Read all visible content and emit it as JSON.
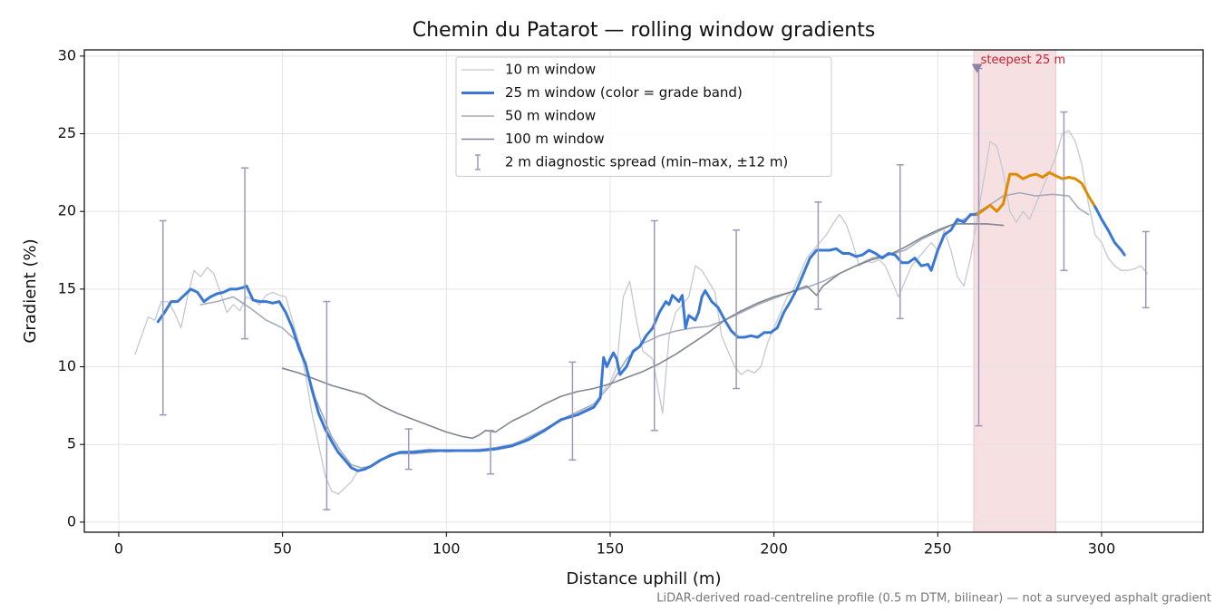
{
  "chart_data": {
    "type": "line",
    "title": "Chemin du Patarot — rolling window gradients",
    "x_label": "Distance uphill (m)",
    "y_label": "Gradient (%)",
    "footnote": "LiDAR-derived road-centreline profile (0.5 m DTM, bilinear) — not a surveyed asphalt gradient",
    "xlim": [
      -10.5,
      331
    ],
    "ylim": [
      -0.65,
      30.4
    ],
    "xticks": [
      0,
      50,
      100,
      150,
      200,
      250,
      300
    ],
    "yticks": [
      0,
      5,
      10,
      15,
      20,
      25,
      30
    ],
    "grid": true,
    "legend": "upper center",
    "series": [
      {
        "name": "10 m window",
        "color": "#c3c8d1",
        "width": 1.3,
        "x": [
          5,
          7,
          9,
          11,
          13,
          15,
          17,
          19,
          21,
          23,
          25,
          27,
          29,
          31,
          33,
          35,
          37,
          39,
          41,
          43,
          45,
          47,
          49,
          51,
          53,
          55,
          57,
          59,
          61,
          63,
          65,
          67,
          69,
          71,
          73,
          75,
          77,
          80,
          83,
          86,
          90,
          95,
          100,
          105,
          110,
          115,
          120,
          125,
          130,
          135,
          140,
          145,
          148,
          150,
          152,
          154,
          156,
          158,
          160,
          163,
          166,
          168,
          170,
          172,
          174,
          176,
          178,
          180,
          182,
          184,
          186,
          188,
          190,
          192,
          194,
          196,
          198,
          200,
          202,
          204,
          206,
          208,
          210,
          212,
          214,
          216,
          218,
          220,
          222,
          224,
          226,
          228,
          230,
          232,
          234,
          236,
          238,
          240,
          242,
          244,
          246,
          248,
          250,
          252,
          254,
          256,
          258,
          260,
          262,
          264,
          266,
          268,
          270,
          272,
          274,
          276,
          278,
          280,
          282,
          284,
          286,
          288,
          290,
          292,
          294,
          296,
          298,
          300,
          302,
          304,
          306,
          308,
          310,
          312,
          314
        ],
        "values": [
          10.8,
          12,
          13.2,
          13,
          14.2,
          14.2,
          13.5,
          12.5,
          14.5,
          16.2,
          15.8,
          16.4,
          16,
          14.8,
          13.5,
          14,
          13.6,
          14.5,
          14.3,
          14,
          14.6,
          14.8,
          14.6,
          14.5,
          13,
          11.5,
          9.5,
          7,
          5,
          3,
          2,
          1.8,
          2.2,
          2.6,
          3.3,
          3.5,
          3.6,
          4,
          4.4,
          4.5,
          4.6,
          4.7,
          4.5,
          4.6,
          4.7,
          4.8,
          4.9,
          5.5,
          6,
          6.5,
          7,
          7.5,
          8.5,
          9,
          10,
          14.5,
          15.5,
          13,
          11,
          10.5,
          7,
          12,
          13.5,
          14,
          14.5,
          16.5,
          16.2,
          15.5,
          14.8,
          12,
          11,
          10,
          9.5,
          9.8,
          9.6,
          10,
          11.5,
          12.5,
          13.5,
          14.5,
          15,
          16,
          17,
          17.5,
          18,
          18.5,
          19.2,
          19.8,
          19.2,
          18,
          16.5,
          16.8,
          16.7,
          16.9,
          16.5,
          15.5,
          14.5,
          15.5,
          16.5,
          17,
          17.5,
          18,
          17.5,
          18.8,
          17.5,
          15.8,
          15.2,
          17,
          19.5,
          22,
          24.5,
          24.2,
          22.5,
          20,
          19.3,
          20,
          19.5,
          20.5,
          21.5,
          22.5,
          23.5,
          25,
          25.2,
          24.5,
          23,
          20.5,
          18.5,
          18,
          17,
          16.5,
          16.2,
          16.2,
          16.3,
          16.5,
          16
        ]
      },
      {
        "name": "25 m window (color = grade band)",
        "color": "#3a78d4",
        "band_color": "#e08a00",
        "band_threshold": 20,
        "width": 3,
        "x": [
          12,
          14,
          16,
          18,
          20,
          22,
          24,
          26,
          28,
          30,
          32,
          34,
          36,
          38,
          39,
          41,
          43,
          45,
          47,
          49,
          51,
          53,
          55,
          57,
          59,
          61,
          63,
          65,
          67,
          69,
          71,
          73,
          75,
          77,
          80,
          83,
          86,
          90,
          95,
          100,
          105,
          110,
          115,
          120,
          125,
          130,
          135,
          140,
          145,
          147,
          148,
          149,
          150,
          151,
          152,
          153,
          155,
          157,
          159,
          161,
          163,
          165,
          167,
          168,
          169,
          171,
          172,
          173,
          174,
          176,
          177,
          178,
          179,
          181,
          183,
          185,
          187,
          189,
          191,
          193,
          195,
          197,
          199,
          201,
          203,
          205,
          207,
          209,
          211,
          213,
          215,
          217,
          219,
          221,
          223,
          225,
          227,
          229,
          231,
          233,
          235,
          237,
          239,
          241,
          243,
          245,
          247,
          248,
          250,
          252,
          254,
          256,
          258,
          260,
          262,
          264,
          266,
          268,
          270,
          272,
          274,
          276,
          278,
          280,
          282,
          284,
          286,
          288,
          290,
          292,
          294,
          296,
          298,
          300,
          302,
          304,
          306,
          307
        ],
        "values": [
          12.9,
          13.5,
          14.2,
          14.2,
          14.6,
          15,
          14.8,
          14.2,
          14.5,
          14.7,
          14.8,
          15,
          15,
          15.1,
          15.2,
          14.3,
          14.2,
          14.2,
          14.1,
          14.2,
          13.5,
          12.5,
          11.2,
          10.2,
          8.5,
          7,
          6,
          5.2,
          4.5,
          4,
          3.5,
          3.3,
          3.4,
          3.6,
          4,
          4.3,
          4.5,
          4.5,
          4.6,
          4.6,
          4.6,
          4.6,
          4.7,
          4.9,
          5.3,
          5.9,
          6.6,
          6.9,
          7.4,
          8,
          10.6,
          10,
          10.5,
          10.9,
          10.5,
          9.5,
          10,
          11,
          11.3,
          12,
          12.5,
          13.5,
          14.2,
          14,
          14.6,
          14.2,
          14.6,
          12.5,
          13.3,
          13,
          13.5,
          14.5,
          14.9,
          14.2,
          13.8,
          13,
          12.3,
          11.9,
          11.9,
          12,
          11.9,
          12.2,
          12.2,
          12.5,
          13.5,
          14.2,
          15,
          16,
          17,
          17.5,
          17.5,
          17.5,
          17.6,
          17.3,
          17.3,
          17.1,
          17.2,
          17.5,
          17.3,
          17,
          17.3,
          17.2,
          16.7,
          16.7,
          17,
          16.5,
          16.6,
          16.2,
          17.5,
          18.5,
          18.8,
          19.5,
          19.3,
          19.8,
          19.8,
          20.1,
          20.4,
          20,
          20.5,
          22.4,
          22.4,
          22.1,
          22.3,
          22.4,
          22.2,
          22.5,
          22.3,
          22.1,
          22.2,
          22.1,
          21.8,
          21,
          20.3,
          19.5,
          18.8,
          18,
          17.5,
          17.2
        ]
      },
      {
        "name": "50 m window",
        "color": "#a3abba",
        "width": 1.6,
        "x": [
          25,
          30,
          35,
          40,
          45,
          50,
          55,
          58,
          60,
          62,
          65,
          68,
          71,
          74,
          77,
          80,
          85,
          90,
          95,
          100,
          105,
          110,
          115,
          120,
          125,
          130,
          135,
          140,
          145,
          150,
          155,
          160,
          165,
          170,
          175,
          180,
          185,
          190,
          195,
          200,
          205,
          210,
          215,
          220,
          225,
          230,
          235,
          240,
          245,
          250,
          255,
          260,
          265,
          270,
          275,
          280,
          285,
          290,
          293,
          296
        ],
        "values": [
          14,
          14.2,
          14.5,
          13.8,
          13,
          12.5,
          11.5,
          9.5,
          8,
          7,
          5.5,
          4.5,
          3.7,
          3.5,
          3.6,
          4,
          4.4,
          4.4,
          4.5,
          4.6,
          4.6,
          4.6,
          4.8,
          5,
          5.4,
          6,
          6.6,
          7.1,
          7.6,
          8.8,
          10.5,
          11.5,
          12,
          12.3,
          12.5,
          12.6,
          13,
          13.5,
          14,
          14.4,
          14.8,
          15.1,
          15.5,
          16,
          16.5,
          17,
          17.2,
          17.5,
          18.2,
          18.7,
          19.2,
          19.7,
          20.3,
          21,
          21.2,
          21,
          21.1,
          21,
          20.2,
          19.8
        ]
      },
      {
        "name": "100 m window",
        "color": "#7f8591",
        "width": 1.6,
        "x": [
          50,
          55,
          60,
          65,
          70,
          75,
          80,
          85,
          90,
          95,
          100,
          105,
          108,
          110,
          112,
          115,
          120,
          125,
          130,
          135,
          140,
          145,
          150,
          155,
          160,
          165,
          170,
          175,
          180,
          185,
          190,
          195,
          200,
          205,
          210,
          213,
          215,
          220,
          225,
          230,
          235,
          240,
          245,
          250,
          255,
          260,
          265,
          270
        ],
        "values": [
          9.9,
          9.6,
          9.2,
          8.8,
          8.5,
          8.2,
          7.5,
          7,
          6.6,
          6.2,
          5.8,
          5.5,
          5.4,
          5.6,
          5.9,
          5.8,
          6.5,
          7,
          7.6,
          8.1,
          8.4,
          8.6,
          8.9,
          9.3,
          9.7,
          10.2,
          10.8,
          11.5,
          12.2,
          13,
          13.6,
          14.1,
          14.5,
          14.8,
          15.2,
          14.6,
          15.2,
          16,
          16.5,
          16.9,
          17.2,
          17.7,
          18.3,
          18.8,
          19.2,
          19.2,
          19.2,
          19.1
        ]
      }
    ],
    "errorbars": {
      "name": "2 m diagnostic spread (min–max, ±12 m)",
      "color": "#9d99ba",
      "x": [
        13.5,
        38.5,
        63.5,
        88.5,
        113.5,
        138.5,
        163.5,
        188.5,
        213.5,
        238.5,
        262.5,
        288.5,
        313.5
      ],
      "low": [
        6.9,
        11.8,
        0.8,
        3.4,
        3.1,
        4,
        5.9,
        8.6,
        13.7,
        13.1,
        6.2,
        16.2,
        13.8
      ],
      "high": [
        19.4,
        22.8,
        14.2,
        6,
        5.9,
        10.3,
        19.4,
        18.8,
        20.6,
        23,
        29.2,
        26.4,
        18.7
      ]
    },
    "highlight": {
      "x0": 261,
      "x1": 286,
      "color": "#e8a5ad",
      "label": "steepest 25 m",
      "label_color": "#c8202c",
      "marker_x": 262,
      "marker_y": 29.2,
      "marker_color": "#8e80a8"
    }
  }
}
